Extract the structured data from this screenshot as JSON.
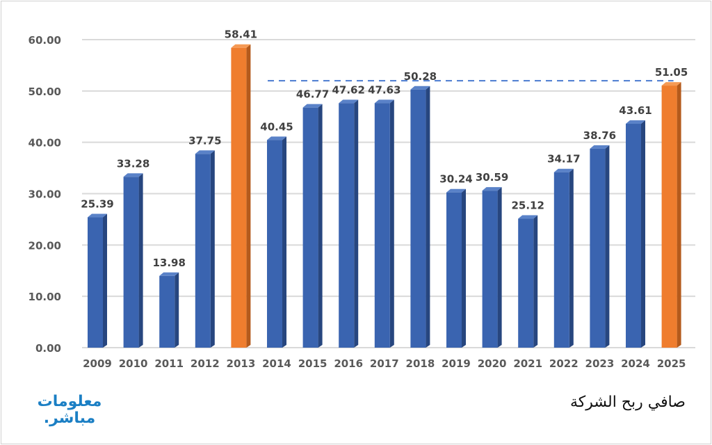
{
  "chart_data": {
    "type": "bar",
    "title": "صافي ربح الشركة",
    "xlabel": "",
    "ylabel": "",
    "ylim": [
      0,
      60
    ],
    "yticks": [
      "0.00",
      "10.00",
      "20.00",
      "30.00",
      "40.00",
      "50.00",
      "60.00"
    ],
    "grid": true,
    "categories": [
      "2009",
      "2010",
      "2011",
      "2012",
      "2013",
      "2014",
      "2015",
      "2016",
      "2017",
      "2018",
      "2019",
      "2020",
      "2021",
      "2022",
      "2023",
      "2024",
      "2025"
    ],
    "values": [
      25.39,
      33.28,
      13.98,
      37.75,
      58.41,
      40.45,
      46.77,
      47.62,
      47.63,
      50.28,
      30.24,
      30.59,
      25.12,
      34.17,
      38.76,
      43.61,
      51.05
    ],
    "data_labels": [
      "25.39",
      "33.28",
      "13.98",
      "37.75",
      "58.41",
      "40.45",
      "46.77",
      "47.62",
      "47.63",
      "50.28",
      "30.24",
      "30.59",
      "25.12",
      "34.17",
      "38.76",
      "43.61",
      "51.05"
    ],
    "highlighted": [
      "2013",
      "2025"
    ],
    "reference_line": {
      "value": 52,
      "from": "2014",
      "to": "2025",
      "style": "dashed"
    },
    "colors": {
      "bar": "#3a64b0",
      "highlight": "#ef7d2e",
      "reference": "#4a7bd0"
    }
  },
  "logo": {
    "line1": "معلومات",
    "line2": "مباشر."
  }
}
